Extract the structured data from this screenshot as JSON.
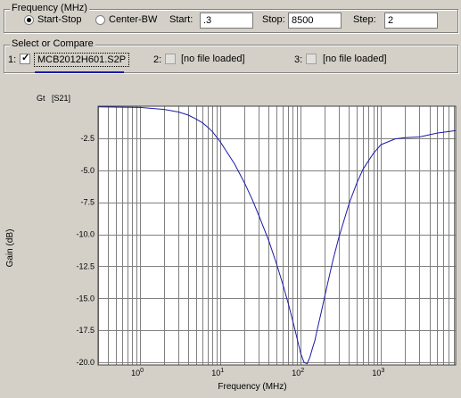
{
  "frequency": {
    "title": "Frequency (MHz)",
    "mode_start_stop": "Start-Stop",
    "mode_center_bw": "Center-BW",
    "start_label": "Start:",
    "start_value": ".3",
    "stop_label": "Stop:",
    "stop_value": "8500",
    "step_label": "Step:",
    "step_value": "2"
  },
  "compare": {
    "title": "Select or Compare",
    "slots": [
      {
        "number": "1:",
        "checked": true,
        "file": "MCB2012H601.S2P"
      },
      {
        "number": "2:",
        "checked": false,
        "file": "[no file loaded]"
      },
      {
        "number": "3:",
        "checked": false,
        "file": "[no file loaded]"
      }
    ]
  },
  "colors": {
    "trace": "#1a1aa8",
    "grid": "#808080",
    "background": "#d4d0c8",
    "plot_bg": "#ffffff"
  },
  "chart_data": {
    "type": "line",
    "legend": "Gt   [S21]",
    "xlabel": "Frequency (MHz)",
    "ylabel": "Gain (dB)",
    "xscale": "log",
    "xlim": [
      0.3,
      8500
    ],
    "ylim": [
      -20.2,
      0
    ],
    "x_tick_labels": [
      {
        "value": 1,
        "label": "10",
        "exp": "0"
      },
      {
        "value": 10,
        "label": "10",
        "exp": "1"
      },
      {
        "value": 100,
        "label": "10",
        "exp": "2"
      },
      {
        "value": 1000,
        "label": "10",
        "exp": "3"
      }
    ],
    "y_ticks": [
      -2.5,
      -5.0,
      -7.5,
      -10.0,
      -12.5,
      -15.0,
      -17.5,
      -20.0
    ],
    "y_tick_labels": [
      "-2.5",
      "-5.0",
      "-7.5",
      "-10.0",
      "-12.5",
      "-15.0",
      "-17.5",
      "-20.0"
    ],
    "grid": true,
    "series": [
      {
        "x": [
          0.3,
          1,
          2,
          3,
          4,
          5,
          6,
          7,
          8,
          10,
          15,
          20,
          25,
          30,
          40,
          50,
          60,
          70,
          80,
          90,
          100,
          110,
          120,
          130,
          140,
          150,
          160,
          180,
          200,
          250,
          300,
          400,
          500,
          600,
          800,
          1000,
          1500,
          2000,
          3000,
          5000,
          8500
        ],
        "y": [
          -0.05,
          -0.1,
          -0.25,
          -0.45,
          -0.7,
          -1.0,
          -1.3,
          -1.65,
          -2.0,
          -2.8,
          -4.5,
          -6.0,
          -7.3,
          -8.5,
          -10.5,
          -12.3,
          -13.9,
          -15.4,
          -16.8,
          -18.1,
          -19.3,
          -20.0,
          -20.1,
          -19.6,
          -18.9,
          -18.3,
          -17.5,
          -16.1,
          -14.8,
          -12.1,
          -10.2,
          -7.6,
          -6.0,
          -4.9,
          -3.7,
          -3.0,
          -2.55,
          -2.45,
          -2.4,
          -2.1,
          -1.9
        ]
      }
    ]
  }
}
